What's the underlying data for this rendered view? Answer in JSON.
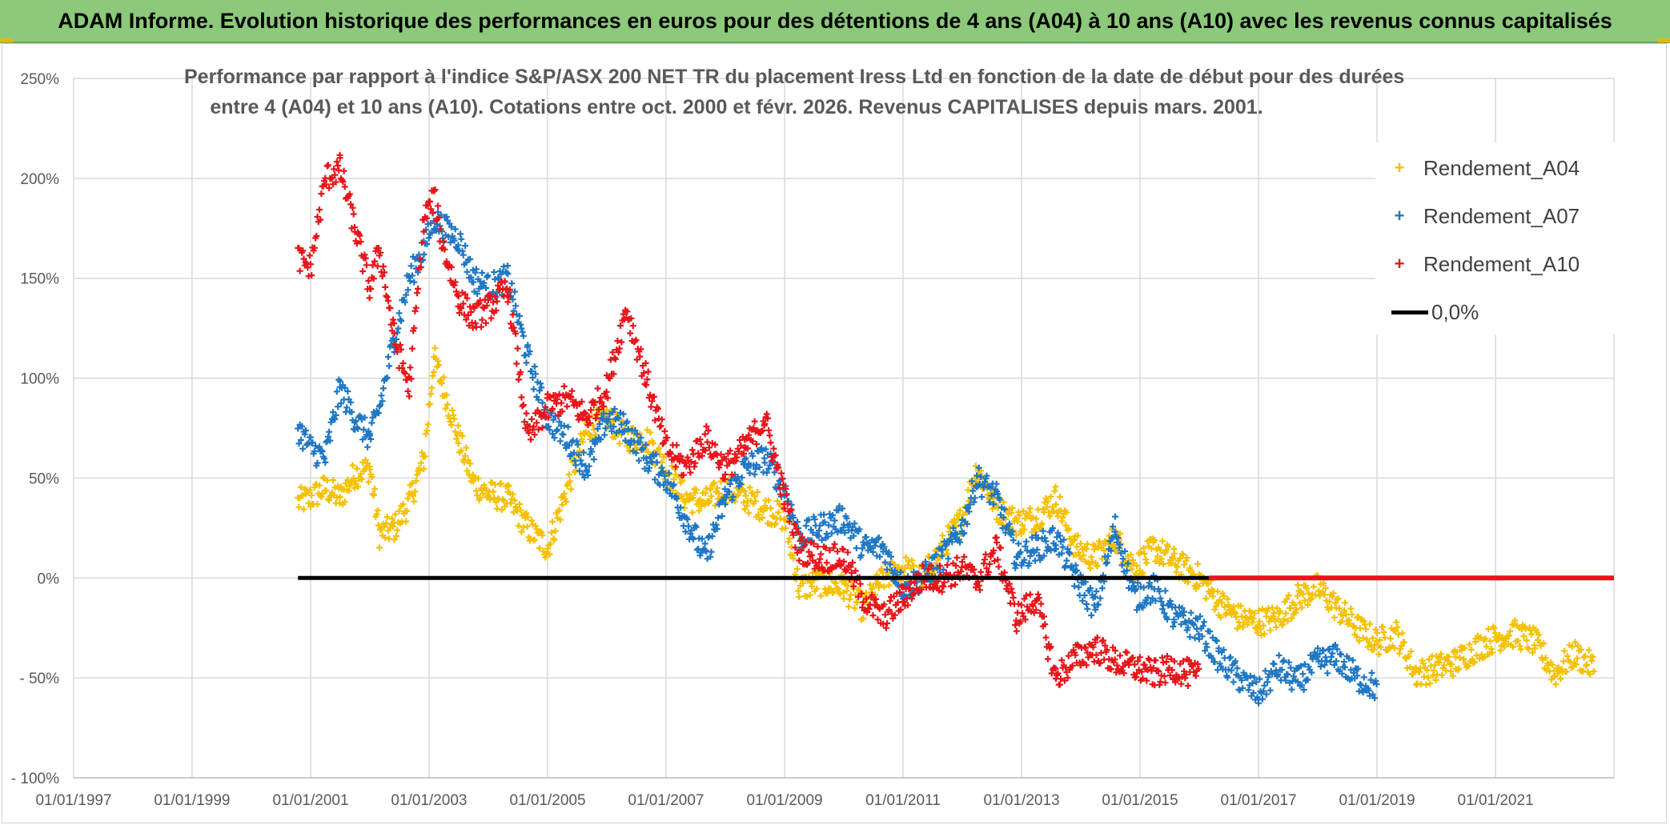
{
  "banner": {
    "title": "ADAM Informe. Evolution historique des performances en euros pour des détentions de 4 ans (A04) à 10 ans (A10) avec les revenus connus capitalisés"
  },
  "chart_data": {
    "type": "scatter",
    "title_line1": "Performance par rapport à l'indice S&P/ASX 200 NET TR  du placement Iress Ltd en fonction de la date de début pour des durées",
    "title_line2": "entre 4 (A04) et 10 ans (A10). Cotations entre oct. 2000 et févr. 2026. Revenus CAPITALISES depuis mars. 2001.",
    "xlabel": "",
    "ylabel": "",
    "x_axis": {
      "type": "date",
      "min": "1997-01-01",
      "max": "2023-01-01",
      "tick_labels": [
        "01/01/1997",
        "01/01/1999",
        "01/01/2001",
        "01/01/2003",
        "01/01/2005",
        "01/01/2007",
        "01/01/2009",
        "01/01/2011",
        "01/01/2013",
        "01/01/2015",
        "01/01/2017",
        "01/01/2019",
        "01/01/2021"
      ]
    },
    "y_axis": {
      "min": -100,
      "max": 250,
      "step": 50,
      "tick_labels": [
        "- 100%",
        "- 50%",
        "0%",
        "50%",
        "100%",
        "150%",
        "200%",
        "250%"
      ]
    },
    "grid": true,
    "legend_position": "top-right",
    "series": [
      {
        "name": "Rendement_A04",
        "color": "#f5c000",
        "marker": "+",
        "points": [
          [
            "2000-10-15",
            38
          ],
          [
            "2001-01-01",
            40
          ],
          [
            "2001-04-01",
            45
          ],
          [
            "2001-07-01",
            40
          ],
          [
            "2001-10-01",
            52
          ],
          [
            "2002-01-01",
            55
          ],
          [
            "2002-03-01",
            22
          ],
          [
            "2002-06-01",
            25
          ],
          [
            "2002-09-01",
            38
          ],
          [
            "2002-12-01",
            60
          ],
          [
            "2003-02-01",
            110
          ],
          [
            "2003-04-01",
            95
          ],
          [
            "2003-07-01",
            70
          ],
          [
            "2003-10-01",
            48
          ],
          [
            "2004-01-01",
            42
          ],
          [
            "2004-05-01",
            40
          ],
          [
            "2004-09-01",
            25
          ],
          [
            "2005-01-01",
            15
          ],
          [
            "2005-05-01",
            45
          ],
          [
            "2005-09-01",
            75
          ],
          [
            "2006-01-01",
            80
          ],
          [
            "2006-05-01",
            70
          ],
          [
            "2006-09-01",
            70
          ],
          [
            "2007-01-01",
            55
          ],
          [
            "2007-05-01",
            40
          ],
          [
            "2007-09-01",
            38
          ],
          [
            "2008-01-01",
            45
          ],
          [
            "2008-05-01",
            40
          ],
          [
            "2008-09-01",
            35
          ],
          [
            "2009-01-01",
            30
          ],
          [
            "2009-04-01",
            -5
          ],
          [
            "2009-08-01",
            -2
          ],
          [
            "2010-01-01",
            -5
          ],
          [
            "2010-05-01",
            -15
          ],
          [
            "2010-09-01",
            0
          ],
          [
            "2011-01-01",
            5
          ],
          [
            "2011-05-01",
            0
          ],
          [
            "2011-09-01",
            15
          ],
          [
            "2012-01-01",
            30
          ],
          [
            "2012-04-01",
            55
          ],
          [
            "2012-08-01",
            35
          ],
          [
            "2012-12-01",
            28
          ],
          [
            "2013-04-01",
            30
          ],
          [
            "2013-08-01",
            40
          ],
          [
            "2013-12-01",
            15
          ],
          [
            "2014-04-01",
            10
          ],
          [
            "2014-08-01",
            20
          ],
          [
            "2014-12-01",
            5
          ],
          [
            "2015-04-01",
            15
          ],
          [
            "2015-08-01",
            8
          ],
          [
            "2016-01-01",
            0
          ],
          [
            "2016-05-01",
            -12
          ],
          [
            "2016-09-01",
            -20
          ],
          [
            "2017-01-01",
            -22
          ],
          [
            "2017-05-01",
            -20
          ],
          [
            "2017-09-01",
            -10
          ],
          [
            "2018-01-01",
            -5
          ],
          [
            "2018-05-01",
            -15
          ],
          [
            "2018-09-01",
            -25
          ],
          [
            "2019-01-01",
            -32
          ],
          [
            "2019-05-01",
            -28
          ],
          [
            "2019-09-01",
            -48
          ],
          [
            "2020-01-01",
            -45
          ],
          [
            "2020-05-01",
            -42
          ],
          [
            "2020-09-01",
            -35
          ],
          [
            "2021-01-01",
            -30
          ],
          [
            "2021-05-01",
            -28
          ],
          [
            "2021-09-01",
            -32
          ],
          [
            "2022-01-01",
            -48
          ],
          [
            "2022-05-01",
            -38
          ],
          [
            "2022-09-01",
            -45
          ]
        ]
      },
      {
        "name": "Rendement_A07",
        "color": "#1f77c4",
        "marker": "+",
        "points": [
          [
            "2000-10-15",
            75
          ],
          [
            "2001-01-01",
            65
          ],
          [
            "2001-04-01",
            60
          ],
          [
            "2001-07-01",
            95
          ],
          [
            "2001-10-01",
            80
          ],
          [
            "2002-01-01",
            70
          ],
          [
            "2002-03-01",
            85
          ],
          [
            "2002-06-01",
            120
          ],
          [
            "2002-09-01",
            150
          ],
          [
            "2002-12-01",
            165
          ],
          [
            "2003-02-01",
            180
          ],
          [
            "2003-04-01",
            175
          ],
          [
            "2003-07-01",
            170
          ],
          [
            "2003-10-01",
            150
          ],
          [
            "2004-01-01",
            145
          ],
          [
            "2004-05-01",
            150
          ],
          [
            "2004-09-01",
            110
          ],
          [
            "2005-01-01",
            80
          ],
          [
            "2005-05-01",
            70
          ],
          [
            "2005-09-01",
            55
          ],
          [
            "2006-01-01",
            80
          ],
          [
            "2006-05-01",
            75
          ],
          [
            "2006-09-01",
            60
          ],
          [
            "2007-01-01",
            50
          ],
          [
            "2007-05-01",
            30
          ],
          [
            "2007-09-01",
            10
          ],
          [
            "2008-01-01",
            40
          ],
          [
            "2008-05-01",
            55
          ],
          [
            "2008-09-01",
            60
          ],
          [
            "2009-01-01",
            45
          ],
          [
            "2009-04-01",
            20
          ],
          [
            "2009-08-01",
            25
          ],
          [
            "2010-01-01",
            30
          ],
          [
            "2010-05-01",
            15
          ],
          [
            "2010-09-01",
            15
          ],
          [
            "2011-01-01",
            -5
          ],
          [
            "2011-05-01",
            0
          ],
          [
            "2011-09-01",
            10
          ],
          [
            "2012-01-01",
            25
          ],
          [
            "2012-04-01",
            50
          ],
          [
            "2012-08-01",
            40
          ],
          [
            "2012-12-01",
            10
          ],
          [
            "2013-04-01",
            15
          ],
          [
            "2013-08-01",
            20
          ],
          [
            "2013-12-01",
            0
          ],
          [
            "2014-04-01",
            -15
          ],
          [
            "2014-08-01",
            25
          ],
          [
            "2014-12-01",
            -10
          ],
          [
            "2015-04-01",
            -5
          ],
          [
            "2015-08-01",
            -20
          ],
          [
            "2016-01-01",
            -25
          ],
          [
            "2016-05-01",
            -40
          ],
          [
            "2016-09-01",
            -50
          ],
          [
            "2017-01-01",
            -58
          ],
          [
            "2017-05-01",
            -45
          ],
          [
            "2017-09-01",
            -52
          ],
          [
            "2018-01-01",
            -42
          ],
          [
            "2018-05-01",
            -40
          ],
          [
            "2018-09-01",
            -50
          ],
          [
            "2019-01-01",
            -55
          ]
        ]
      },
      {
        "name": "Rendement_A10",
        "color": "#e8141a",
        "marker": "+",
        "points": [
          [
            "2000-10-15",
            160
          ],
          [
            "2001-01-01",
            155
          ],
          [
            "2001-04-01",
            200
          ],
          [
            "2001-07-01",
            205
          ],
          [
            "2001-10-01",
            175
          ],
          [
            "2002-01-01",
            145
          ],
          [
            "2002-03-01",
            165
          ],
          [
            "2002-06-01",
            120
          ],
          [
            "2002-09-01",
            95
          ],
          [
            "2002-12-01",
            180
          ],
          [
            "2003-02-01",
            190
          ],
          [
            "2003-04-01",
            165
          ],
          [
            "2003-07-01",
            140
          ],
          [
            "2003-10-01",
            130
          ],
          [
            "2004-01-01",
            135
          ],
          [
            "2004-05-01",
            145
          ],
          [
            "2004-09-01",
            70
          ],
          [
            "2005-01-01",
            85
          ],
          [
            "2005-05-01",
            90
          ],
          [
            "2005-09-01",
            80
          ],
          [
            "2006-01-01",
            95
          ],
          [
            "2006-05-01",
            135
          ],
          [
            "2006-09-01",
            100
          ],
          [
            "2007-01-01",
            65
          ],
          [
            "2007-05-01",
            55
          ],
          [
            "2007-09-01",
            70
          ],
          [
            "2008-01-01",
            55
          ],
          [
            "2008-05-01",
            65
          ],
          [
            "2008-09-01",
            80
          ],
          [
            "2009-01-01",
            40
          ],
          [
            "2009-04-01",
            15
          ],
          [
            "2009-08-01",
            10
          ],
          [
            "2010-01-01",
            10
          ],
          [
            "2010-05-01",
            -10
          ],
          [
            "2010-09-01",
            -20
          ],
          [
            "2011-01-01",
            -10
          ],
          [
            "2011-05-01",
            0
          ],
          [
            "2011-09-01",
            0
          ],
          [
            "2012-01-01",
            5
          ],
          [
            "2012-04-01",
            -2
          ],
          [
            "2012-08-01",
            15
          ],
          [
            "2012-12-01",
            -20
          ],
          [
            "2013-04-01",
            -10
          ],
          [
            "2013-08-01",
            -50
          ],
          [
            "2013-12-01",
            -40
          ],
          [
            "2014-04-01",
            -35
          ],
          [
            "2014-08-01",
            -42
          ],
          [
            "2014-12-01",
            -45
          ],
          [
            "2015-04-01",
            -48
          ],
          [
            "2015-08-01",
            -45
          ],
          [
            "2016-01-01",
            -50
          ]
        ]
      }
    ],
    "reference_line": {
      "name": "0,0%",
      "y": 0,
      "color": "#000000",
      "x_start": "2000-10-15",
      "x_end": "2016-03-01",
      "red_overlay_start": "2016-03-01",
      "red_overlay_color": "#e8141a"
    }
  }
}
